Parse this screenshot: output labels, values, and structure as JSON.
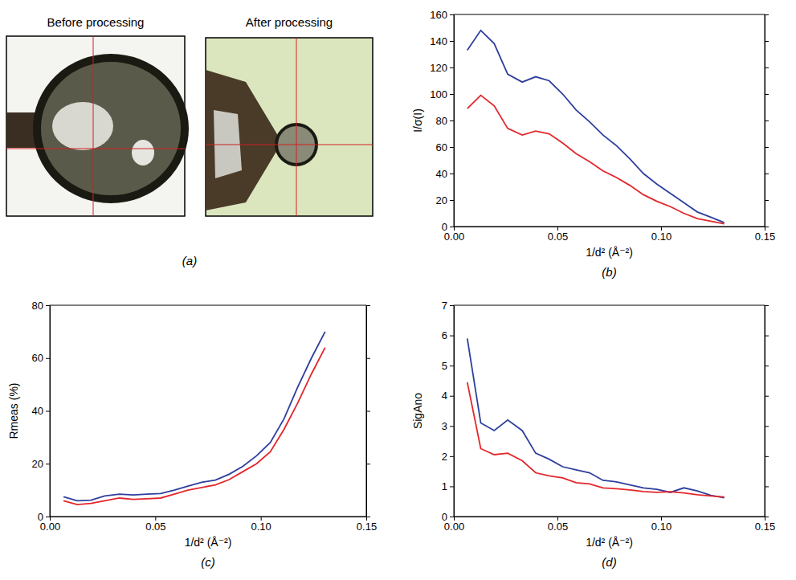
{
  "chart_data": [
    {
      "type": "image",
      "title": "(a)",
      "labels": [
        "Before processing",
        "After processing"
      ]
    },
    {
      "type": "line",
      "title": "(b)",
      "x_label": "1/d² (Å⁻²)",
      "y_label": "I/σ(I)",
      "x": [
        0.0065,
        0.013,
        0.0195,
        0.026,
        0.033,
        0.0395,
        0.046,
        0.0525,
        0.059,
        0.0655,
        0.072,
        0.0785,
        0.085,
        0.0915,
        0.098,
        0.1045,
        0.111,
        0.1175,
        0.124,
        0.1305
      ],
      "series": [
        {
          "color": "#2e3f9c",
          "values": [
            133,
            148,
            138,
            115,
            109,
            113,
            110,
            100,
            88,
            79,
            69,
            61,
            51,
            40,
            32,
            25,
            18,
            11,
            7,
            3
          ]
        },
        {
          "color": "#e3262b",
          "values": [
            89,
            99,
            91,
            74,
            69,
            72,
            70,
            63,
            55,
            49,
            42,
            37,
            31,
            24,
            19,
            15,
            10,
            6,
            4,
            2
          ]
        }
      ],
      "xlim": [
        0,
        0.15
      ],
      "ylim": [
        0,
        160
      ],
      "xticks": [
        {
          "value": 0,
          "label": "0.00"
        },
        {
          "value": 0.05,
          "label": "0.05"
        },
        {
          "value": 0.1,
          "label": "0.10"
        },
        {
          "value": 0.15,
          "label": "0.15"
        }
      ],
      "yticks": [
        0,
        20,
        40,
        60,
        80,
        100,
        120,
        140,
        160
      ]
    },
    {
      "type": "line",
      "title": "(c)",
      "x_label": "1/d² (Å⁻²)",
      "y_label": "Rmeas (%)",
      "x": [
        0.0065,
        0.013,
        0.0195,
        0.026,
        0.033,
        0.0395,
        0.046,
        0.0525,
        0.059,
        0.0655,
        0.072,
        0.0785,
        0.085,
        0.0915,
        0.098,
        0.1045,
        0.111,
        0.1175,
        0.124,
        0.1305
      ],
      "series": [
        {
          "color": "#2e3f9c",
          "values": [
            7.5,
            6,
            6.2,
            7.8,
            8.5,
            8.2,
            8.5,
            8.7,
            10,
            11.5,
            13,
            13.8,
            16,
            19,
            23,
            28,
            37,
            49,
            60,
            70
          ]
        },
        {
          "color": "#e3262b",
          "values": [
            6,
            4.5,
            5,
            6,
            7,
            6.5,
            6.7,
            7,
            8.5,
            10,
            11,
            12,
            14,
            17,
            20,
            24.5,
            33,
            43,
            54,
            64
          ]
        }
      ],
      "xlim": [
        0,
        0.15
      ],
      "ylim": [
        0,
        80
      ],
      "xticks": [
        {
          "value": 0,
          "label": "0.00"
        },
        {
          "value": 0.05,
          "label": "0.05"
        },
        {
          "value": 0.1,
          "label": "0.10"
        },
        {
          "value": 0.15,
          "label": "0.15"
        }
      ],
      "yticks": [
        0,
        20,
        40,
        60,
        80
      ]
    },
    {
      "type": "line",
      "title": "(d)",
      "x_label": "1/d² (Å⁻²)",
      "y_label": "SigAno",
      "x": [
        0.0065,
        0.013,
        0.0195,
        0.026,
        0.033,
        0.0395,
        0.046,
        0.0525,
        0.059,
        0.0655,
        0.072,
        0.0785,
        0.085,
        0.0915,
        0.098,
        0.1045,
        0.111,
        0.1175,
        0.124,
        0.1305
      ],
      "series": [
        {
          "color": "#2e3f9c",
          "values": [
            5.9,
            3.1,
            2.85,
            3.2,
            2.85,
            2.1,
            1.9,
            1.65,
            1.55,
            1.45,
            1.2,
            1.15,
            1.05,
            0.95,
            0.9,
            0.8,
            0.95,
            0.85,
            0.7,
            0.62
          ]
        },
        {
          "color": "#e3262b",
          "values": [
            4.45,
            2.25,
            2.05,
            2.1,
            1.85,
            1.45,
            1.35,
            1.28,
            1.12,
            1.08,
            0.95,
            0.92,
            0.88,
            0.83,
            0.8,
            0.82,
            0.78,
            0.72,
            0.68,
            0.65
          ]
        }
      ],
      "xlim": [
        0,
        0.15
      ],
      "ylim": [
        0,
        7
      ],
      "xticks": [
        {
          "value": 0,
          "label": "0.00"
        },
        {
          "value": 0.05,
          "label": "0.05"
        },
        {
          "value": 0.1,
          "label": "0.10"
        },
        {
          "value": 0.15,
          "label": "0.15"
        }
      ],
      "yticks": [
        0,
        1,
        2,
        3,
        4,
        5,
        6,
        7
      ]
    }
  ]
}
